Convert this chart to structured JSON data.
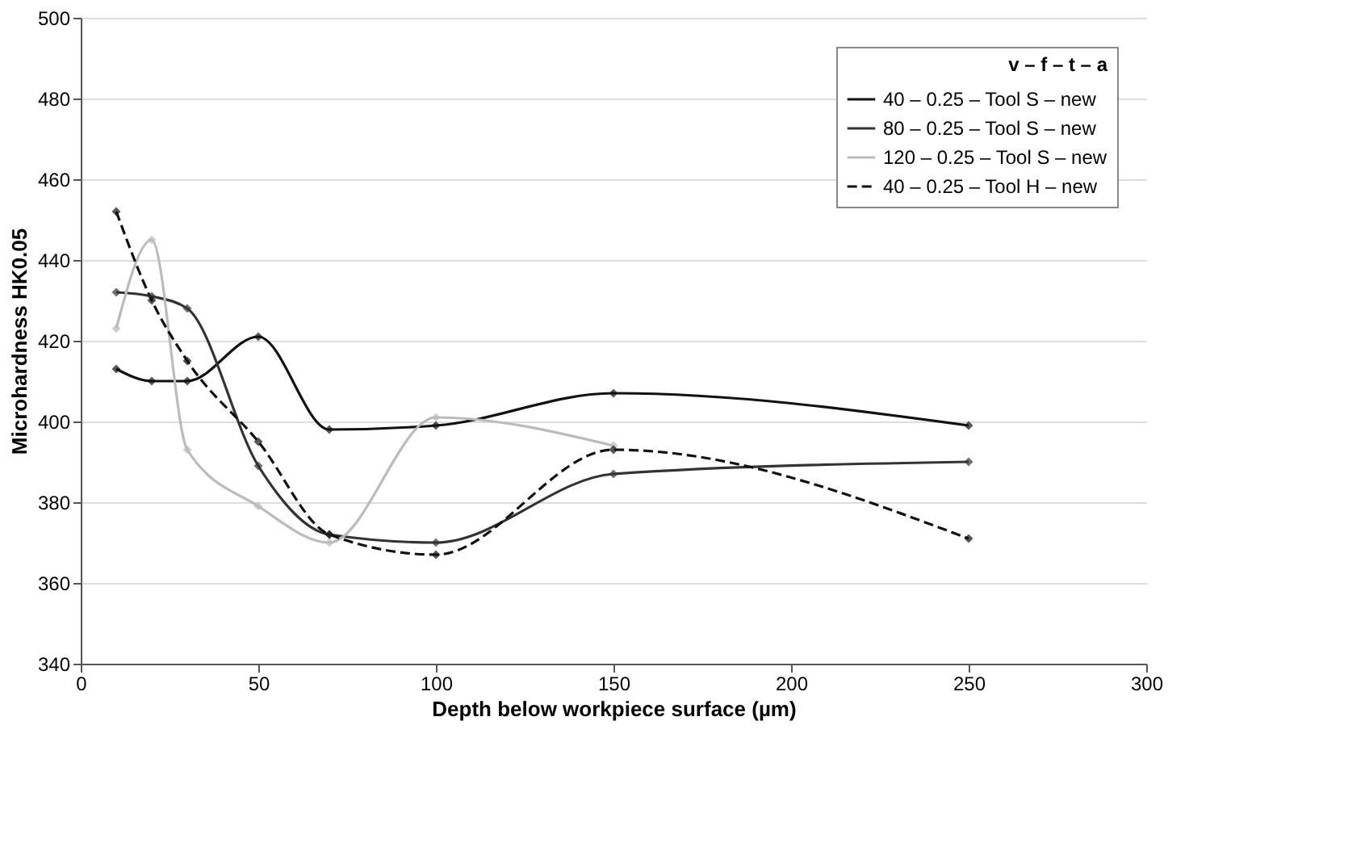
{
  "chart_data": {
    "type": "line",
    "xlabel": "Depth below workpiece surface (µm)",
    "ylabel": "Microhardness HK0.05",
    "legend_title": "v – f – t – a",
    "x": [
      10,
      20,
      30,
      50,
      70,
      100,
      150,
      250
    ],
    "series": [
      {
        "name": "40 – 0.25 – Tool S – new",
        "color": "#111111",
        "line_style": "solid",
        "values": [
          413,
          410,
          410,
          421,
          398,
          399,
          407,
          399
        ]
      },
      {
        "name": "80 – 0.25 – Tool S – new",
        "color": "#333333",
        "line_style": "solid",
        "values": [
          432,
          431,
          428,
          389,
          372,
          370,
          387,
          390
        ]
      },
      {
        "name": "120 – 0.25 – Tool S – new",
        "color": "#bbbbbb",
        "line_style": "solid",
        "values": [
          423,
          445,
          393,
          379,
          370,
          401,
          394,
          null
        ]
      },
      {
        "name": "40 – 0.25 – Tool H – new",
        "color": "#111111",
        "line_style": "dashed",
        "values": [
          452,
          430,
          415,
          395,
          372,
          367,
          393,
          371
        ]
      }
    ],
    "xlim": [
      0,
      300
    ],
    "xticks": [
      0,
      50,
      100,
      150,
      200,
      250,
      300
    ],
    "ylim": [
      340,
      500
    ],
    "yticks": [
      340,
      360,
      380,
      400,
      420,
      440,
      460,
      480,
      500
    ],
    "grid": "y",
    "legend": "top right",
    "marker": "diamond"
  }
}
